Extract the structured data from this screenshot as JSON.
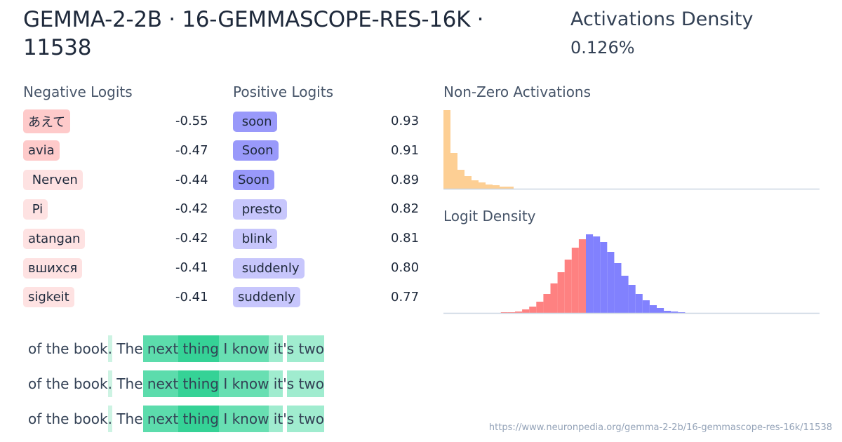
{
  "header": {
    "title": "GEMMA-2-2B · 16-GEMMASCOPE-RES-16K · 11538",
    "density_label": "Activations Density",
    "density_value": "0.126%"
  },
  "negative": {
    "label": "Negative Logits",
    "items": [
      {
        "token": "あえて",
        "value": "-0.55",
        "color": "#fecaca"
      },
      {
        "token": "avia",
        "value": "-0.47",
        "color": "#fecaca"
      },
      {
        "token": " Nerven",
        "value": "-0.44",
        "color": "#fee2e2"
      },
      {
        "token": " Pi",
        "value": "-0.42",
        "color": "#fee2e2"
      },
      {
        "token": "atangan",
        "value": "-0.42",
        "color": "#fee2e2"
      },
      {
        "token": "вшихся",
        "value": "-0.41",
        "color": "#fee2e2"
      },
      {
        "token": "sigkeit",
        "value": "-0.41",
        "color": "#fee2e2"
      }
    ]
  },
  "positive": {
    "label": "Positive Logits",
    "items": [
      {
        "token": " soon",
        "value": "0.93",
        "color": "#9999fa"
      },
      {
        "token": " Soon",
        "value": "0.91",
        "color": "#9999fa"
      },
      {
        "token": "Soon",
        "value": "0.89",
        "color": "#9999fa"
      },
      {
        "token": " presto",
        "value": "0.82",
        "color": "#c7c6fc"
      },
      {
        "token": " blink",
        "value": "0.81",
        "color": "#c7c6fc"
      },
      {
        "token": " suddenly",
        "value": "0.80",
        "color": "#c7c6fc"
      },
      {
        "token": "suddenly",
        "value": "0.77",
        "color": "#c7c6fc"
      }
    ]
  },
  "chart_data": [
    {
      "type": "bar",
      "title": "Non-Zero Activations",
      "color": "#fdcf94",
      "values": [
        112,
        51,
        27,
        18,
        12,
        9,
        6,
        5,
        3,
        3
      ],
      "grid": false
    },
    {
      "type": "bar",
      "title": "Logit Density",
      "colors": {
        "negative": "#fe8181",
        "positive": "#8181fe"
      },
      "negative_values": [
        1,
        1,
        2,
        5,
        9,
        16,
        27,
        42,
        58,
        76,
        93,
        105
      ],
      "positive_values": [
        112,
        109,
        101,
        87,
        71,
        53,
        40,
        27,
        18,
        11,
        7,
        3,
        2,
        1
      ],
      "grid": false
    }
  ],
  "examples": [
    [
      {
        "t": "of the book",
        "c": ""
      },
      {
        "t": ".",
        "c": "#cdf3e3"
      },
      {
        "t": " The",
        "c": ""
      },
      {
        "t": " next",
        "c": "#5cdcac"
      },
      {
        "t": " thing",
        "c": "#35d296"
      },
      {
        "t": " I know",
        "c": "#68dfb2"
      },
      {
        "t": " it",
        "c": "#a0eccf"
      },
      {
        "t": "'",
        "c": ""
      },
      {
        "t": "s two",
        "c": "#a0eccf"
      }
    ],
    [
      {
        "t": "of the book",
        "c": ""
      },
      {
        "t": ".",
        "c": "#cdf3e3"
      },
      {
        "t": " The",
        "c": ""
      },
      {
        "t": " next",
        "c": "#5cdcac"
      },
      {
        "t": " thing",
        "c": "#35d296"
      },
      {
        "t": " I know",
        "c": "#68dfb2"
      },
      {
        "t": " it",
        "c": "#a0eccf"
      },
      {
        "t": "'",
        "c": ""
      },
      {
        "t": "s two",
        "c": "#a0eccf"
      }
    ],
    [
      {
        "t": "of the book",
        "c": ""
      },
      {
        "t": ".",
        "c": "#cdf3e3"
      },
      {
        "t": " The",
        "c": ""
      },
      {
        "t": " next",
        "c": "#5cdcac"
      },
      {
        "t": " thing",
        "c": "#35d296"
      },
      {
        "t": " I know",
        "c": "#68dfb2"
      },
      {
        "t": " it",
        "c": "#a0eccf"
      },
      {
        "t": "'",
        "c": ""
      },
      {
        "t": "s two",
        "c": "#a0eccf"
      }
    ]
  ],
  "footer": {
    "url": "https://www.neuronpedia.org/gemma-2-2b/16-gemmascope-res-16k/11538"
  }
}
